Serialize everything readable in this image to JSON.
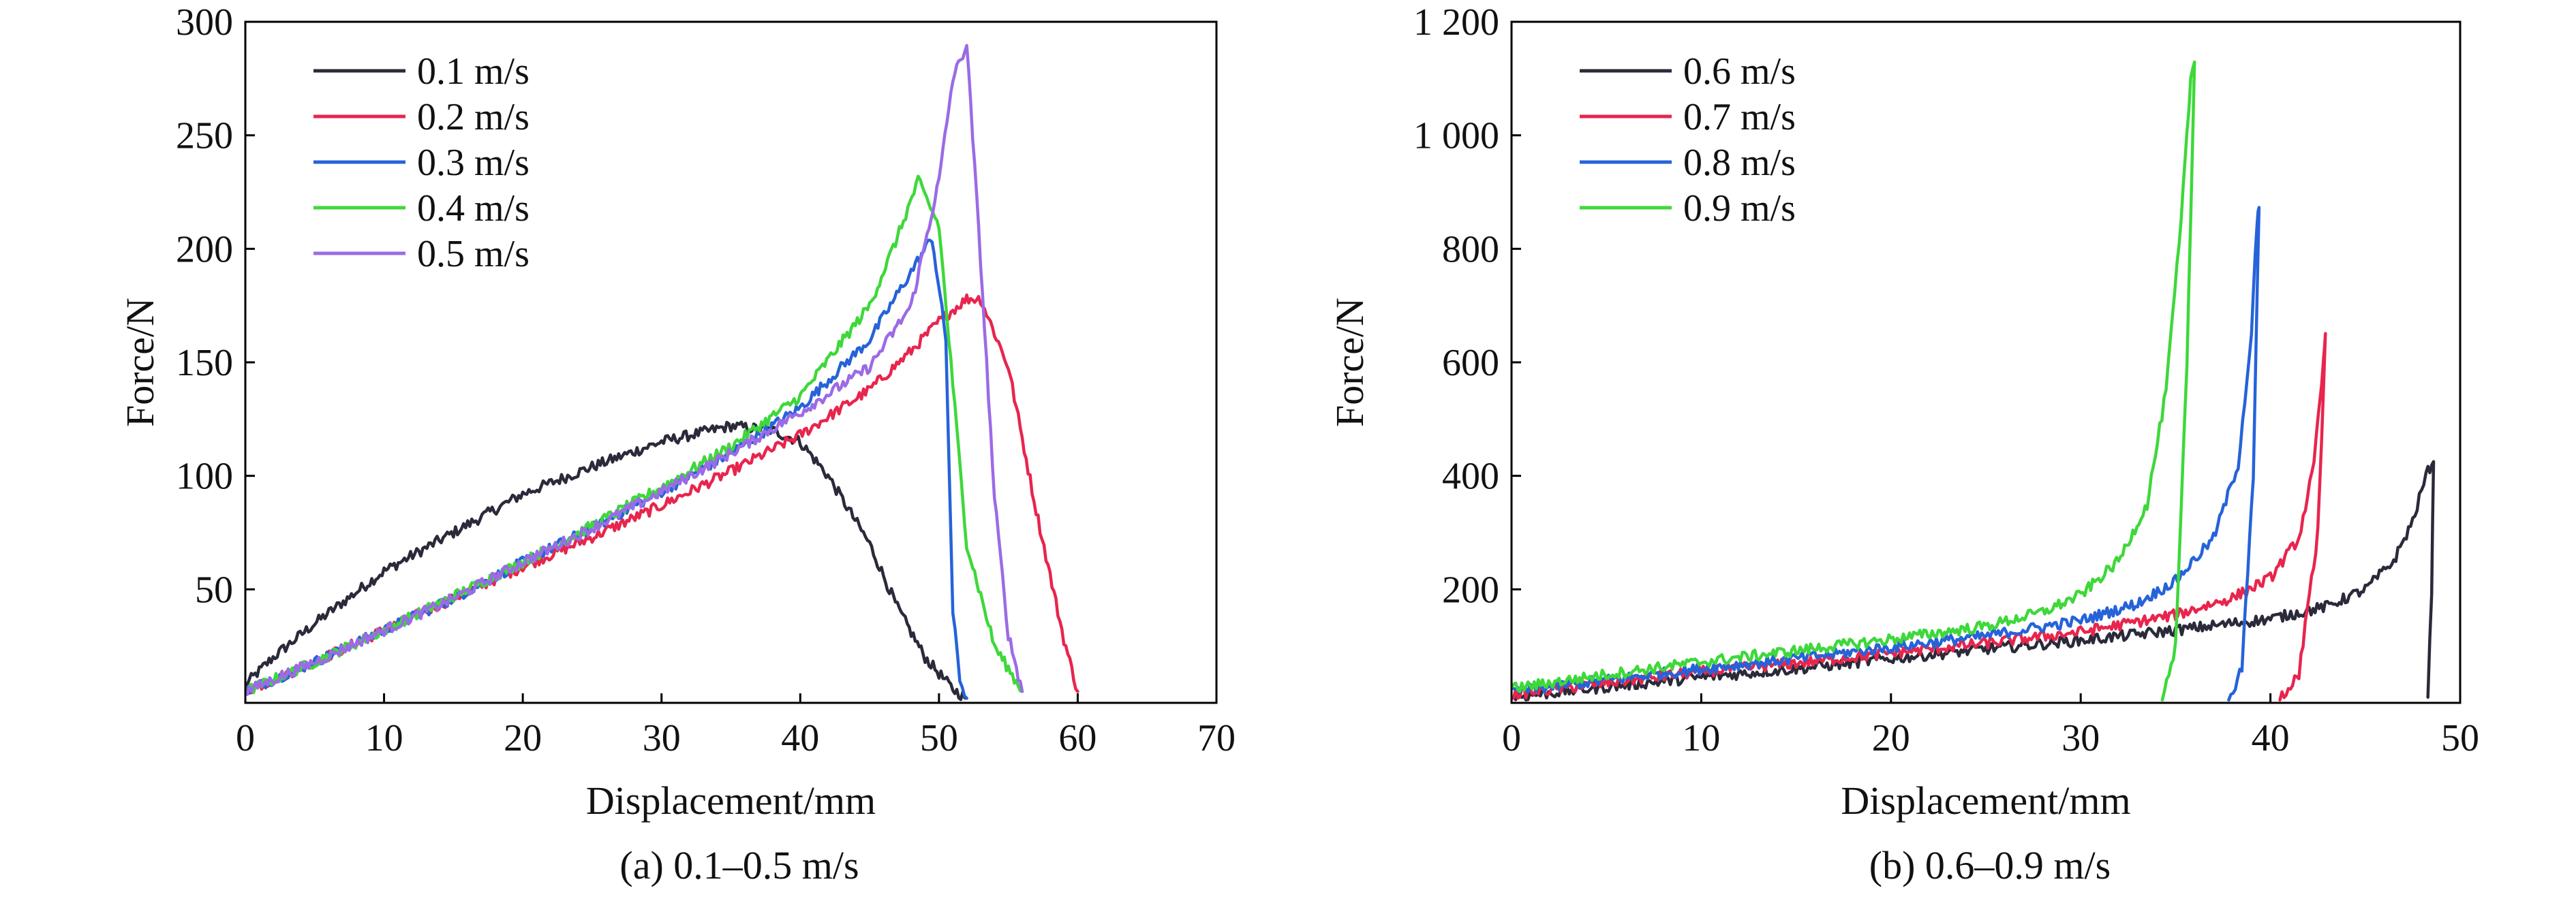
{
  "chart_data": [
    {
      "type": "line",
      "caption": "(a) 0.1–0.5 m/s",
      "xlabel": "Displacement/mm",
      "ylabel": "Force/N",
      "xlim": [
        0,
        70
      ],
      "ylim": [
        0,
        300
      ],
      "xticks": [
        0,
        10,
        20,
        30,
        40,
        50,
        60,
        70
      ],
      "xtick_labels": [
        "0",
        "10",
        "20",
        "30",
        "40",
        "50",
        "60",
        "70"
      ],
      "yticks": [
        50,
        100,
        150,
        200,
        250,
        300
      ],
      "ytick_labels": [
        "50",
        "100",
        "150",
        "200",
        "250",
        "300"
      ],
      "legend_position": "top-left",
      "series": [
        {
          "name": "0.1 m/s",
          "color": "#2a2a3a",
          "x": [
            0,
            2,
            5,
            10,
            15,
            20,
            25,
            30,
            35,
            38,
            40,
            42,
            45,
            47,
            49,
            51,
            52
          ],
          "y": [
            8,
            20,
            35,
            58,
            75,
            92,
            104,
            115,
            122,
            120,
            115,
            100,
            70,
            42,
            20,
            6,
            2
          ]
        },
        {
          "name": "0.2 m/s",
          "color": "#e8254d",
          "x": [
            0,
            5,
            10,
            15,
            20,
            25,
            30,
            35,
            40,
            45,
            48,
            50,
            52,
            53,
            55,
            57,
            59,
            60
          ],
          "y": [
            5,
            18,
            32,
            46,
            60,
            73,
            87,
            102,
            118,
            138,
            155,
            168,
            178,
            178,
            148,
            85,
            28,
            5
          ]
        },
        {
          "name": "0.3 m/s",
          "color": "#2663d9",
          "x": [
            0,
            5,
            10,
            15,
            20,
            25,
            30,
            35,
            40,
            45,
            48,
            49.5,
            50.5,
            51,
            51.5,
            52
          ],
          "y": [
            5,
            18,
            32,
            46,
            62,
            77,
            93,
            110,
            130,
            160,
            190,
            205,
            160,
            40,
            10,
            2
          ]
        },
        {
          "name": "0.4 m/s",
          "color": "#3ed83a",
          "x": [
            0,
            5,
            10,
            15,
            20,
            25,
            30,
            35,
            40,
            45,
            47,
            48.5,
            50,
            51,
            52,
            54,
            56
          ],
          "y": [
            5,
            18,
            32,
            47,
            62,
            78,
            95,
            113,
            135,
            175,
            205,
            230,
            210,
            140,
            70,
            25,
            5
          ]
        },
        {
          "name": "0.5 m/s",
          "color": "#9b6be6",
          "x": [
            0,
            5,
            10,
            15,
            20,
            25,
            30,
            35,
            40,
            45,
            48,
            50,
            51,
            52,
            53,
            54,
            55,
            56
          ],
          "y": [
            5,
            18,
            32,
            46,
            62,
            77,
            93,
            110,
            128,
            148,
            175,
            230,
            275,
            290,
            195,
            90,
            30,
            5
          ]
        }
      ]
    },
    {
      "type": "line",
      "caption": "(b) 0.6–0.9 m/s",
      "xlabel": "Displacement/mm",
      "ylabel": "Force/N",
      "xlim": [
        0,
        50
      ],
      "ylim": [
        0,
        1200
      ],
      "xticks": [
        0,
        10,
        20,
        30,
        40,
        50
      ],
      "xtick_labels": [
        "0",
        "10",
        "20",
        "30",
        "40",
        "50"
      ],
      "yticks": [
        200,
        400,
        600,
        800,
        1000,
        1200
      ],
      "ytick_labels": [
        "200",
        "400",
        "600",
        "800",
        "1 000",
        "1 200"
      ],
      "legend_position": "top-left",
      "series": [
        {
          "name": "0.6 m/s",
          "color": "#2a2a3a",
          "x": [
            0,
            5,
            10,
            15,
            20,
            25,
            30,
            35,
            40,
            43,
            45,
            46.5,
            47.5,
            48.2,
            48.6,
            48.5,
            48.3
          ],
          "y": [
            10,
            28,
            45,
            60,
            78,
            95,
            110,
            128,
            148,
            170,
            200,
            250,
            320,
            400,
            430,
            200,
            10
          ]
        },
        {
          "name": "0.7 m/s",
          "color": "#e8254d",
          "x": [
            0,
            5,
            10,
            15,
            20,
            25,
            30,
            35,
            38,
            40,
            41.5,
            42.3,
            42.8,
            42.9,
            42.5,
            41.5,
            40.5
          ],
          "y": [
            15,
            35,
            55,
            70,
            88,
            105,
            125,
            155,
            185,
            220,
            290,
            420,
            600,
            650,
            300,
            50,
            5
          ]
        },
        {
          "name": "0.8 m/s",
          "color": "#2663d9",
          "x": [
            0,
            5,
            10,
            15,
            20,
            25,
            30,
            33,
            35,
            37,
            38.3,
            39,
            39.3,
            39.4,
            39.1,
            38.5,
            37.8
          ],
          "y": [
            20,
            40,
            60,
            78,
            98,
            118,
            145,
            175,
            215,
            290,
            420,
            650,
            850,
            870,
            400,
            60,
            5
          ]
        },
        {
          "name": "0.9 m/s",
          "color": "#3ed83a",
          "x": [
            0,
            5,
            10,
            15,
            20,
            25,
            28,
            30,
            32,
            33.5,
            34.5,
            35.3,
            35.8,
            36,
            35.6,
            35,
            34.3
          ],
          "y": [
            25,
            50,
            72,
            92,
            112,
            135,
            160,
            190,
            250,
            350,
            550,
            850,
            1100,
            1130,
            600,
            100,
            5
          ]
        }
      ]
    }
  ]
}
